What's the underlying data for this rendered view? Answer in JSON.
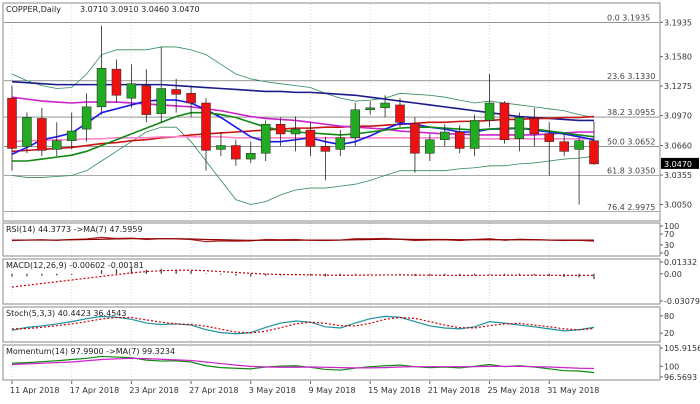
{
  "chart_data": {
    "type": "candlestick",
    "title": "COPPER,Daily",
    "ohlc_text": "3.0710 3.0910 3.0460 3.0470",
    "current_price": "3.0470",
    "y_range": [
      2.99,
      3.2
    ],
    "y_ticks": [
      "3.1935",
      "3.1580",
      "3.1275",
      "3.0970",
      "3.0660",
      "3.0355",
      "3.0050"
    ],
    "x_labels": [
      "11 Apr 2018",
      "17 Apr 2018",
      "23 Apr 2018",
      "27 Apr 2018",
      "3 May 2018",
      "9 May 2018",
      "15 May 2018",
      "21 May 2018",
      "25 May 2018",
      "31 May 2018"
    ],
    "fib_levels": [
      {
        "label": "0.0",
        "price": "3.1935",
        "value": 3.1935
      },
      {
        "label": "23.6",
        "price": "3.1330",
        "value": 3.133
      },
      {
        "label": "38.2",
        "price": "3.0955",
        "value": 3.0955
      },
      {
        "label": "50.0",
        "price": "3.0652",
        "value": 3.0652
      },
      {
        "label": "61.8",
        "price": "3.0350",
        "value": 3.035
      },
      {
        "label": "76.4",
        "price": "2.9975",
        "value": 2.9975
      }
    ],
    "candles": [
      {
        "o": 3.115,
        "h": 3.128,
        "c": 3.063,
        "l": 3.04
      },
      {
        "o": 3.065,
        "h": 3.1,
        "c": 3.095,
        "l": 3.058
      },
      {
        "o": 3.094,
        "h": 3.105,
        "c": 3.061,
        "l": 3.055
      },
      {
        "o": 3.062,
        "h": 3.09,
        "c": 3.071,
        "l": 3.055
      },
      {
        "o": 3.071,
        "h": 3.1,
        "c": 3.081,
        "l": 3.062
      },
      {
        "o": 3.083,
        "h": 3.12,
        "c": 3.106,
        "l": 3.07
      },
      {
        "o": 3.106,
        "h": 3.19,
        "c": 3.146,
        "l": 3.098
      },
      {
        "o": 3.145,
        "h": 3.155,
        "c": 3.118,
        "l": 3.11
      },
      {
        "o": 3.115,
        "h": 3.15,
        "c": 3.13,
        "l": 3.105
      },
      {
        "o": 3.128,
        "h": 3.145,
        "c": 3.098,
        "l": 3.09
      },
      {
        "o": 3.099,
        "h": 3.168,
        "c": 3.125,
        "l": 3.09
      },
      {
        "o": 3.124,
        "h": 3.135,
        "c": 3.119,
        "l": 3.1
      },
      {
        "o": 3.12,
        "h": 3.128,
        "c": 3.11,
        "l": 3.095
      },
      {
        "o": 3.11,
        "h": 3.115,
        "c": 3.061,
        "l": 3.04
      },
      {
        "o": 3.062,
        "h": 3.08,
        "c": 3.066,
        "l": 3.055
      },
      {
        "o": 3.066,
        "h": 3.072,
        "c": 3.052,
        "l": 3.045
      },
      {
        "o": 3.052,
        "h": 3.07,
        "c": 3.058,
        "l": 3.048
      },
      {
        "o": 3.058,
        "h": 3.092,
        "c": 3.088,
        "l": 3.05
      },
      {
        "o": 3.088,
        "h": 3.095,
        "c": 3.078,
        "l": 3.065
      },
      {
        "o": 3.078,
        "h": 3.096,
        "c": 3.083,
        "l": 3.06
      },
      {
        "o": 3.082,
        "h": 3.09,
        "c": 3.065,
        "l": 3.055
      },
      {
        "o": 3.065,
        "h": 3.075,
        "c": 3.06,
        "l": 3.03
      },
      {
        "o": 3.062,
        "h": 3.082,
        "c": 3.074,
        "l": 3.055
      },
      {
        "o": 3.074,
        "h": 3.11,
        "c": 3.103,
        "l": 3.065
      },
      {
        "o": 3.103,
        "h": 3.112,
        "c": 3.105,
        "l": 3.098
      },
      {
        "o": 3.105,
        "h": 3.118,
        "c": 3.11,
        "l": 3.095
      },
      {
        "o": 3.108,
        "h": 3.115,
        "c": 3.09,
        "l": 3.085
      },
      {
        "o": 3.089,
        "h": 3.095,
        "c": 3.058,
        "l": 3.038
      },
      {
        "o": 3.058,
        "h": 3.078,
        "c": 3.072,
        "l": 3.05
      },
      {
        "o": 3.072,
        "h": 3.088,
        "c": 3.08,
        "l": 3.065
      },
      {
        "o": 3.08,
        "h": 3.087,
        "c": 3.063,
        "l": 3.058
      },
      {
        "o": 3.063,
        "h": 3.098,
        "c": 3.092,
        "l": 3.055
      },
      {
        "o": 3.092,
        "h": 3.14,
        "c": 3.11,
        "l": 3.085
      },
      {
        "o": 3.11,
        "h": 3.112,
        "c": 3.072,
        "l": 3.068
      },
      {
        "o": 3.073,
        "h": 3.1,
        "c": 3.095,
        "l": 3.06
      },
      {
        "o": 3.094,
        "h": 3.105,
        "c": 3.078,
        "l": 3.065
      },
      {
        "o": 3.078,
        "h": 3.09,
        "c": 3.07,
        "l": 3.035
      },
      {
        "o": 3.07,
        "h": 3.078,
        "c": 3.06,
        "l": 3.055
      },
      {
        "o": 3.062,
        "h": 3.074,
        "c": 3.071,
        "l": 3.005
      },
      {
        "o": 3.071,
        "h": 3.091,
        "c": 3.047,
        "l": 3.046
      }
    ],
    "bull_color": "#22aa22",
    "bear_color": "#ee1111",
    "ma_lines": [
      {
        "color": "#1a1a8c",
        "values": [
          3.132,
          3.131,
          3.13,
          3.129,
          3.129,
          3.129,
          3.129,
          3.129,
          3.129,
          3.129,
          3.129,
          3.128,
          3.127,
          3.126,
          3.125,
          3.124,
          3.123,
          3.122,
          3.122,
          3.121,
          3.121,
          3.12,
          3.119,
          3.118,
          3.116,
          3.114,
          3.112,
          3.11,
          3.108,
          3.106,
          3.104,
          3.102,
          3.1,
          3.098,
          3.096,
          3.095,
          3.094,
          3.093,
          3.092,
          3.092
        ]
      },
      {
        "color": "#cc1111",
        "values": [
          3.06,
          3.061,
          3.062,
          3.063,
          3.064,
          3.066,
          3.068,
          3.069,
          3.071,
          3.072,
          3.074,
          3.075,
          3.077,
          3.078,
          3.079,
          3.08,
          3.081,
          3.082,
          3.083,
          3.084,
          3.084,
          3.085,
          3.085,
          3.086,
          3.086,
          3.087,
          3.088,
          3.089,
          3.09,
          3.09,
          3.091,
          3.091,
          3.092,
          3.093,
          3.093,
          3.094,
          3.094,
          3.095,
          3.095,
          3.096
        ]
      },
      {
        "color": "#cc22cc",
        "values": [
          3.116,
          3.114,
          3.112,
          3.111,
          3.11,
          3.111,
          3.111,
          3.111,
          3.11,
          3.109,
          3.108,
          3.107,
          3.106,
          3.104,
          3.102,
          3.099,
          3.096,
          3.094,
          3.093,
          3.092,
          3.09,
          3.088,
          3.086,
          3.085,
          3.084,
          3.083,
          3.081,
          3.08,
          3.079,
          3.078,
          3.078,
          3.077,
          3.077,
          3.077,
          3.077,
          3.077,
          3.078,
          3.079,
          3.08,
          3.08
        ]
      },
      {
        "color": "#ff88cc",
        "values": [
          3.07,
          3.071,
          3.071,
          3.072,
          3.072,
          3.073,
          3.073,
          3.074,
          3.074,
          3.074,
          3.075,
          3.075,
          3.075,
          3.075,
          3.075,
          3.074,
          3.074,
          3.074,
          3.074,
          3.074,
          3.074,
          3.074,
          3.074,
          3.074,
          3.074,
          3.074,
          3.074,
          3.074,
          3.074,
          3.074,
          3.074,
          3.073,
          3.073,
          3.073,
          3.073,
          3.073,
          3.073,
          3.073,
          3.073,
          3.073
        ]
      },
      {
        "color": "#1a1aee",
        "values": [
          3.057,
          3.064,
          3.072,
          3.075,
          3.079,
          3.089,
          3.1,
          3.104,
          3.108,
          3.112,
          3.113,
          3.113,
          3.11,
          3.103,
          3.095,
          3.085,
          3.075,
          3.07,
          3.07,
          3.072,
          3.074,
          3.07,
          3.067,
          3.07,
          3.076,
          3.083,
          3.089,
          3.088,
          3.085,
          3.083,
          3.08,
          3.08,
          3.083,
          3.083,
          3.084,
          3.082,
          3.08,
          3.078,
          3.075,
          3.072
        ]
      },
      {
        "color": "#118811",
        "values": [
          3.05,
          3.05,
          3.052,
          3.054,
          3.056,
          3.06,
          3.066,
          3.072,
          3.078,
          3.084,
          3.09,
          3.096,
          3.1,
          3.1,
          3.098,
          3.095,
          3.09,
          3.085,
          3.082,
          3.08,
          3.079,
          3.078,
          3.077,
          3.078,
          3.08,
          3.082,
          3.084,
          3.085,
          3.085,
          3.084,
          3.083,
          3.082,
          3.083,
          3.084,
          3.084,
          3.083,
          3.081,
          3.079,
          3.077,
          3.075
        ]
      }
    ],
    "bands": {
      "color": "#2e8b57",
      "upper": [
        3.14,
        3.133,
        3.128,
        3.125,
        3.126,
        3.14,
        3.16,
        3.165,
        3.165,
        3.165,
        3.168,
        3.168,
        3.165,
        3.16,
        3.15,
        3.14,
        3.135,
        3.132,
        3.13,
        3.128,
        3.126,
        3.12,
        3.115,
        3.112,
        3.113,
        3.115,
        3.12,
        3.119,
        3.118,
        3.116,
        3.113,
        3.11,
        3.112,
        3.11,
        3.108,
        3.106,
        3.104,
        3.102,
        3.098,
        3.095
      ],
      "lower": [
        3.035,
        3.033,
        3.033,
        3.034,
        3.035,
        3.04,
        3.05,
        3.06,
        3.07,
        3.08,
        3.085,
        3.085,
        3.07,
        3.05,
        3.03,
        3.01,
        3.005,
        3.008,
        3.015,
        3.02,
        3.022,
        3.022,
        3.024,
        3.026,
        3.03,
        3.035,
        3.04,
        3.04,
        3.04,
        3.04,
        3.042,
        3.043,
        3.045,
        3.045,
        3.047,
        3.048,
        3.05,
        3.052,
        3.053,
        3.055
      ]
    },
    "indicators": [
      {
        "key": "rsi",
        "label": "RSI(14) 44.3773  ->MA(7) 47.5959",
        "y_range": [
          0,
          100
        ],
        "ticks": [
          "100",
          "70",
          "30",
          "0"
        ],
        "lines": [
          {
            "color": "#b22222",
            "values": [
              46,
              48,
              49,
              47,
              50,
              52,
              58,
              54,
              55,
              50,
              53,
              52,
              50,
              42,
              45,
              44,
              45,
              50,
              49,
              50,
              47,
              46,
              48,
              53,
              53,
              54,
              51,
              46,
              48,
              49,
              46,
              50,
              53,
              47,
              51,
              49,
              48,
              46,
              47,
              44
            ]
          },
          {
            "color": "#8b0000",
            "values": [
              48,
              48,
              48,
              48,
              49,
              50,
              51,
              52,
              53,
              53,
              53,
              53,
              52,
              50,
              49,
              48,
              47,
              47,
              47,
              47,
              48,
              48,
              48,
              49,
              50,
              51,
              51,
              50,
              50,
              50,
              49,
              49,
              49,
              49,
              49,
              49,
              48,
              48,
              48,
              48
            ]
          }
        ]
      },
      {
        "key": "macd",
        "label": "MACD(12,26,9) -0.00602 -0.00181",
        "y_range": [
          -0.03079,
          0.01332
        ],
        "ticks": [
          "0.01332",
          "0.00",
          "-0.03079"
        ],
        "histogram": [
          -0.003,
          -0.0028,
          -0.0022,
          -0.0018,
          -0.0012,
          0.0,
          0.004,
          0.005,
          0.006,
          0.0045,
          0.0055,
          0.0048,
          0.0035,
          0.0005,
          -0.001,
          -0.002,
          -0.003,
          -0.0022,
          -0.002,
          -0.0015,
          -0.002,
          -0.003,
          -0.0025,
          -0.001,
          -0.0005,
          0.0,
          -0.001,
          -0.0025,
          -0.0025,
          -0.002,
          -0.0025,
          -0.0018,
          -0.001,
          -0.002,
          -0.0015,
          -0.0018,
          -0.0025,
          -0.0035,
          -0.004,
          -0.006
        ],
        "lines": [
          {
            "color": "#cc0000",
            "dashed": true,
            "values": [
              -0.015,
              -0.013,
              -0.011,
              -0.009,
              -0.007,
              -0.005,
              -0.003,
              -0.001,
              0.001,
              0.0025,
              0.0035,
              0.004,
              0.004,
              0.0035,
              0.0025,
              0.0015,
              0.0005,
              -0.0003,
              -0.0008,
              -0.001,
              -0.0012,
              -0.0015,
              -0.0017,
              -0.0016,
              -0.0015,
              -0.0013,
              -0.0013,
              -0.0015,
              -0.0016,
              -0.0017,
              -0.0018,
              -0.0018,
              -0.0017,
              -0.0017,
              -0.0017,
              -0.0017,
              -0.0017,
              -0.0018,
              -0.0018,
              -0.0018
            ]
          }
        ]
      },
      {
        "key": "stoch",
        "label": "Stoch(5,3,3) 40.4423 36.4543",
        "y_range": [
          0,
          100
        ],
        "ticks": [
          "80",
          "20"
        ],
        "lines": [
          {
            "color": "#1e90a0",
            "values": [
              30,
              40,
              45,
              52,
              60,
              70,
              78,
              75,
              68,
              55,
              50,
              52,
              48,
              32,
              22,
              18,
              22,
              40,
              55,
              62,
              58,
              42,
              38,
              55,
              70,
              78,
              75,
              60,
              45,
              38,
              35,
              42,
              60,
              55,
              48,
              42,
              35,
              28,
              32,
              40
            ]
          },
          {
            "color": "#cc0000",
            "dashed": true,
            "values": [
              35,
              36,
              40,
              46,
              52,
              60,
              69,
              74,
              74,
              66,
              58,
              52,
              50,
              44,
              34,
              24,
              21,
              27,
              39,
              52,
              58,
              54,
              46,
              45,
              54,
              68,
              74,
              71,
              60,
              48,
              39,
              38,
              46,
              52,
              54,
              48,
              42,
              35,
              32,
              36
            ]
          }
        ]
      },
      {
        "key": "momentum",
        "label": "Momentum(14) 97.9900  ->MA(7) 99.3234",
        "y_range": [
          96.5693,
          105.9156
        ],
        "ticks": [
          "105.9156",
          "100",
          "96.5693"
        ],
        "lines": [
          {
            "color": "#118811",
            "values": [
              101.0,
              101.2,
              101.5,
              101.8,
              102.2,
              102.6,
              103.2,
              103.0,
              102.8,
              102.0,
              101.7,
              101.8,
              101.4,
              100.2,
              99.6,
              99.4,
              99.2,
              99.8,
              100.1,
              100.2,
              99.7,
              99.0,
              98.8,
              99.4,
              99.9,
              100.2,
              100.4,
              99.9,
              99.6,
              99.8,
              99.5,
              100.0,
              100.6,
              99.9,
              100.2,
              99.8,
              99.2,
              98.6,
              98.5,
              97.99
            ]
          },
          {
            "color": "#cc22cc",
            "values": [
              100.6,
              100.8,
              101.0,
              101.2,
              101.4,
              101.8,
              102.2,
              102.4,
              102.6,
              102.5,
              102.3,
              102.1,
              101.9,
              101.4,
              100.9,
              100.4,
              100.0,
              99.8,
              99.7,
              99.7,
              99.8,
              99.7,
              99.6,
              99.5,
              99.5,
              99.6,
              99.8,
              99.9,
              99.9,
              99.9,
              99.9,
              99.9,
              100.0,
              100.0,
              100.0,
              99.9,
              99.8,
              99.6,
              99.4,
              99.3234
            ]
          }
        ]
      }
    ],
    "x_label_indices": [
      0,
      4,
      8,
      12,
      16,
      20,
      24,
      28,
      32,
      36
    ]
  }
}
